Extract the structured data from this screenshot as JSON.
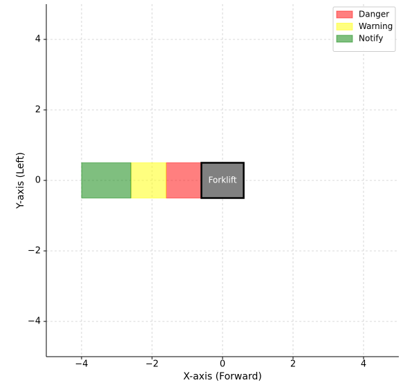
{
  "chart_data": {
    "type": "zones",
    "xlabel": "X-axis (Forward)",
    "ylabel": "Y-axis (Left)",
    "xlim": [
      -5,
      5
    ],
    "ylim": [
      -5,
      5
    ],
    "xticks": [
      {
        "value": -4,
        "label": "−4"
      },
      {
        "value": -2,
        "label": "−2"
      },
      0,
      2,
      4
    ],
    "yticks": [
      {
        "value": -4,
        "label": "−4"
      },
      {
        "value": -2,
        "label": "−2"
      },
      0,
      2,
      4
    ],
    "grid": true,
    "legend": "upper right",
    "zones": [
      {
        "name": "Danger",
        "color": "red",
        "x": [
          -1.6,
          -0.6
        ],
        "y": [
          -0.5,
          0.5
        ]
      },
      {
        "name": "Warning",
        "color": "yellow",
        "x": [
          -2.6,
          -1.6
        ],
        "y": [
          -0.5,
          0.5
        ]
      },
      {
        "name": "Notify",
        "color": "green",
        "x": [
          -4,
          -2.6
        ],
        "y": [
          -0.5,
          0.5
        ]
      }
    ],
    "vehicle": {
      "label": "Forklift",
      "color": "#808080",
      "x": [
        -0.6,
        0.6
      ],
      "y": [
        -0.5,
        0.5
      ]
    }
  }
}
